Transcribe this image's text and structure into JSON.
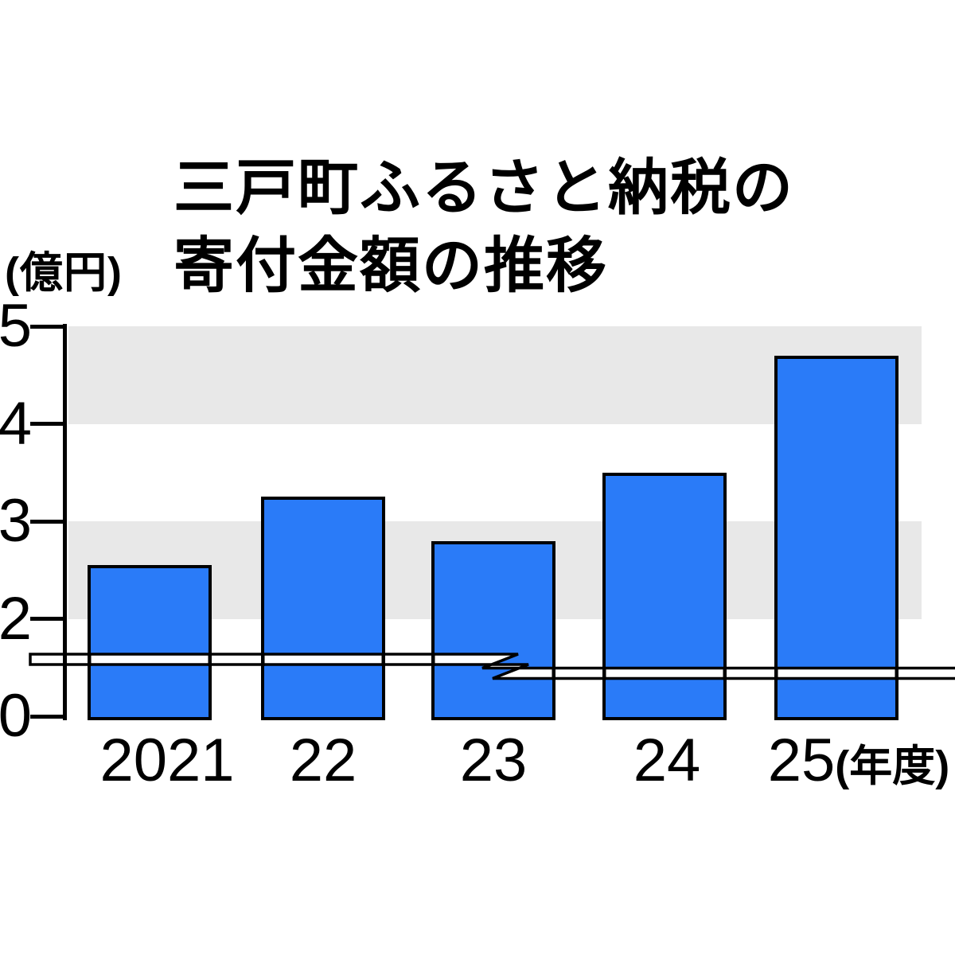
{
  "title": {
    "line1": "三戸町ふるさと納税の",
    "line2": "寄付金額の推移"
  },
  "y_axis": {
    "unit_label": "(億円)",
    "tick_labels": [
      "5",
      "4",
      "3",
      "2",
      "0"
    ]
  },
  "chart_data": {
    "type": "bar",
    "title": "三戸町ふるさと納税の寄付金額の推移",
    "ylabel": "(億円)",
    "categories": [
      "2021",
      "22",
      "23",
      "24",
      "25"
    ],
    "x_axis_suffix": "(年度)",
    "values": [
      2.55,
      3.25,
      2.8,
      3.5,
      4.7
    ],
    "ylim": [
      0,
      5
    ],
    "yticks_shown": [
      5,
      4,
      3,
      2,
      0
    ],
    "y_axis_break": {
      "compressed_range": [
        0,
        2
      ],
      "compression": 0.5,
      "marker_near_value": 1
    },
    "stripe_bands": [
      [
        4,
        5
      ],
      [
        2,
        3
      ]
    ],
    "grid": false,
    "legend": null,
    "colors": {
      "bar_fill": "#2a7bf8",
      "bar_border": "#000000",
      "stripe": "#e8e8e8",
      "axis": "#000000",
      "break_band_fill": "#ffffff",
      "background": "#ffffff"
    }
  }
}
